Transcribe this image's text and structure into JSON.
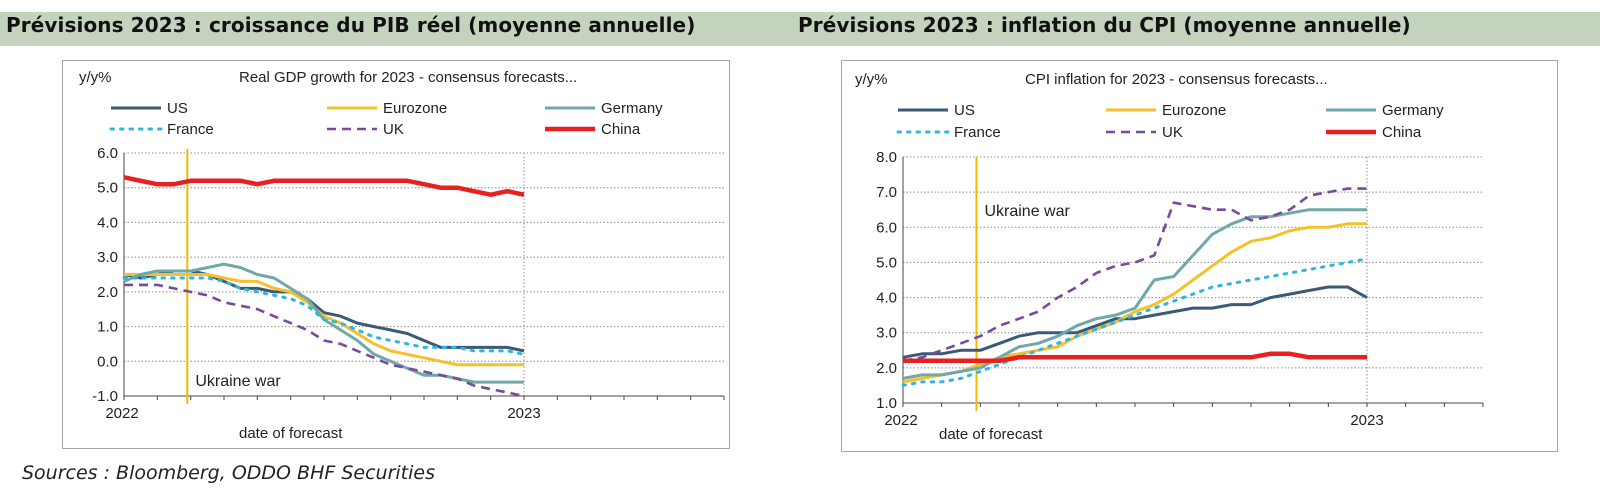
{
  "header": {
    "left_title": "Prévisions 2023 : croissance du PIB réel (moyenne annuelle)",
    "right_title": "Prévisions 2023 : inflation du CPI (moyenne annuelle)"
  },
  "footer": {
    "source": "Sources : Bloomberg, ODDO BHF Securities"
  },
  "chart_data": [
    {
      "type": "line",
      "title": "Real GDP growth for 2023  - consensus forecasts...",
      "ylabel": "y/y%",
      "xlabel": "date of forecast",
      "x_start_label": "2022",
      "x_end_label": "2023",
      "x_unit": "months since Jan 2022",
      "xlim": [
        0,
        18
      ],
      "ylim": [
        -1.0,
        6.0
      ],
      "yticks": [
        "-1.0",
        "0.0",
        "1.0",
        "2.0",
        "3.0",
        "4.0",
        "5.0",
        "6.0"
      ],
      "grid": true,
      "legend_position": "top",
      "annotation": {
        "text": "Ukraine war",
        "x": 1.9,
        "color": "#f5b800"
      },
      "series": [
        {
          "name": "US",
          "color": "#3a5a78",
          "style": "solid",
          "x": [
            0,
            0.5,
            1,
            1.5,
            2,
            2.5,
            3,
            3.5,
            4,
            4.5,
            5,
            5.5,
            6,
            6.5,
            7,
            7.5,
            8,
            8.5,
            9,
            9.5,
            10,
            10.5,
            11,
            11.5,
            12
          ],
          "y": [
            2.5,
            2.4,
            2.5,
            2.6,
            2.6,
            2.5,
            2.3,
            2.1,
            2.1,
            2.0,
            2.0,
            1.8,
            1.4,
            1.3,
            1.1,
            1.0,
            0.9,
            0.8,
            0.6,
            0.4,
            0.4,
            0.4,
            0.4,
            0.4,
            0.3
          ]
        },
        {
          "name": "Eurozone",
          "color": "#f5c028",
          "style": "solid",
          "x": [
            0,
            0.5,
            1,
            1.5,
            2,
            2.5,
            3,
            3.5,
            4,
            4.5,
            5,
            5.5,
            6,
            6.5,
            7,
            7.5,
            8,
            8.5,
            9,
            9.5,
            10,
            10.5,
            11,
            11.5,
            12
          ],
          "y": [
            2.5,
            2.5,
            2.5,
            2.5,
            2.5,
            2.5,
            2.4,
            2.3,
            2.3,
            2.1,
            2.0,
            1.7,
            1.3,
            1.1,
            0.8,
            0.5,
            0.3,
            0.2,
            0.1,
            0.0,
            -0.1,
            -0.1,
            -0.1,
            -0.1,
            -0.1
          ]
        },
        {
          "name": "Germany",
          "color": "#6ea8aa",
          "style": "solid",
          "x": [
            0,
            0.5,
            1,
            1.5,
            2,
            2.5,
            3,
            3.5,
            4,
            4.5,
            5,
            5.5,
            6,
            6.5,
            7,
            7.5,
            8,
            8.5,
            9,
            9.5,
            10,
            10.5,
            11,
            11.5,
            12
          ],
          "y": [
            2.3,
            2.5,
            2.6,
            2.6,
            2.6,
            2.7,
            2.8,
            2.7,
            2.5,
            2.4,
            2.1,
            1.8,
            1.2,
            0.9,
            0.6,
            0.2,
            0.0,
            -0.2,
            -0.4,
            -0.4,
            -0.5,
            -0.6,
            -0.6,
            -0.6,
            -0.6
          ]
        },
        {
          "name": "France",
          "color": "#2fb6de",
          "style": "dotted",
          "x": [
            0,
            0.5,
            1,
            1.5,
            2,
            2.5,
            3,
            3.5,
            4,
            4.5,
            5,
            5.5,
            6,
            6.5,
            7,
            7.5,
            8,
            8.5,
            9,
            9.5,
            10,
            10.5,
            11,
            11.5,
            12
          ],
          "y": [
            2.4,
            2.4,
            2.4,
            2.4,
            2.4,
            2.4,
            2.3,
            2.1,
            2.0,
            1.9,
            1.8,
            1.6,
            1.2,
            1.1,
            0.9,
            0.7,
            0.6,
            0.5,
            0.4,
            0.4,
            0.4,
            0.3,
            0.3,
            0.3,
            0.2
          ]
        },
        {
          "name": "UK",
          "color": "#7a4a9a",
          "style": "dashed",
          "x": [
            0,
            0.5,
            1,
            1.5,
            2,
            2.5,
            3,
            3.5,
            4,
            4.5,
            5,
            5.5,
            6,
            6.5,
            7,
            7.5,
            8,
            8.5,
            9,
            9.5,
            10,
            10.5,
            11,
            11.5,
            12
          ],
          "y": [
            2.2,
            2.2,
            2.2,
            2.1,
            2.0,
            1.9,
            1.7,
            1.6,
            1.5,
            1.3,
            1.1,
            0.9,
            0.6,
            0.5,
            0.3,
            0.1,
            -0.1,
            -0.2,
            -0.3,
            -0.4,
            -0.5,
            -0.7,
            -0.8,
            -0.9,
            -1.0
          ]
        },
        {
          "name": "China",
          "color": "#e82020",
          "style": "solid-thick",
          "x": [
            0,
            0.5,
            1,
            1.5,
            2,
            2.5,
            3,
            3.5,
            4,
            4.5,
            5,
            5.5,
            6,
            6.5,
            7,
            7.5,
            8,
            8.5,
            9,
            9.5,
            10,
            10.5,
            11,
            11.5,
            12
          ],
          "y": [
            5.3,
            5.2,
            5.1,
            5.1,
            5.2,
            5.2,
            5.2,
            5.2,
            5.1,
            5.2,
            5.2,
            5.2,
            5.2,
            5.2,
            5.2,
            5.2,
            5.2,
            5.2,
            5.1,
            5.0,
            5.0,
            4.9,
            4.8,
            4.9,
            4.8
          ]
        }
      ]
    },
    {
      "type": "line",
      "title": "CPI inflation for 2023  - consensus forecasts...",
      "ylabel": "y/y%",
      "xlabel": "date of forecast",
      "x_start_label": "2022",
      "x_end_label": "2023",
      "x_unit": "months since Jan 2022",
      "xlim": [
        0,
        15
      ],
      "ylim": [
        1.0,
        8.0
      ],
      "yticks": [
        "1.0",
        "2.0",
        "3.0",
        "4.0",
        "5.0",
        "6.0",
        "7.0",
        "8.0"
      ],
      "grid": true,
      "legend_position": "top",
      "annotation": {
        "text": "Ukraine war",
        "x": 1.9,
        "color": "#f5b800"
      },
      "series": [
        {
          "name": "US",
          "color": "#3a5a78",
          "style": "solid",
          "x": [
            0,
            0.5,
            1,
            1.5,
            2,
            2.5,
            3,
            3.5,
            4,
            4.5,
            5,
            5.5,
            6,
            6.5,
            7,
            7.5,
            8,
            8.5,
            9,
            9.5,
            10,
            10.5,
            11,
            11.5,
            12
          ],
          "y": [
            2.3,
            2.4,
            2.4,
            2.5,
            2.5,
            2.7,
            2.9,
            3.0,
            3.0,
            3.0,
            3.2,
            3.4,
            3.4,
            3.5,
            3.6,
            3.7,
            3.7,
            3.8,
            3.8,
            4.0,
            4.1,
            4.2,
            4.3,
            4.3,
            4.0
          ]
        },
        {
          "name": "Eurozone",
          "color": "#f5c028",
          "style": "solid",
          "x": [
            0,
            0.5,
            1,
            1.5,
            2,
            2.5,
            3,
            3.5,
            4,
            4.5,
            5,
            5.5,
            6,
            6.5,
            7,
            7.5,
            8,
            8.5,
            9,
            9.5,
            10,
            10.5,
            11,
            11.5,
            12
          ],
          "y": [
            1.6,
            1.7,
            1.8,
            1.9,
            2.1,
            2.3,
            2.4,
            2.5,
            2.6,
            2.9,
            3.1,
            3.3,
            3.6,
            3.8,
            4.1,
            4.5,
            4.9,
            5.3,
            5.6,
            5.7,
            5.9,
            6.0,
            6.0,
            6.1,
            6.1
          ]
        },
        {
          "name": "Germany",
          "color": "#6ea8aa",
          "style": "solid",
          "x": [
            0,
            0.5,
            1,
            1.5,
            2,
            2.5,
            3,
            3.5,
            4,
            4.5,
            5,
            5.5,
            6,
            6.5,
            7,
            7.5,
            8,
            8.5,
            9,
            9.5,
            10,
            10.5,
            11,
            11.5,
            12
          ],
          "y": [
            1.7,
            1.8,
            1.8,
            1.9,
            2.0,
            2.3,
            2.6,
            2.7,
            2.9,
            3.2,
            3.4,
            3.5,
            3.7,
            4.5,
            4.6,
            5.2,
            5.8,
            6.1,
            6.3,
            6.3,
            6.4,
            6.5,
            6.5,
            6.5,
            6.5
          ]
        },
        {
          "name": "France",
          "color": "#2fb6de",
          "style": "dotted",
          "x": [
            0,
            0.5,
            1,
            1.5,
            2,
            2.5,
            3,
            3.5,
            4,
            4.5,
            5,
            5.5,
            6,
            6.5,
            7,
            7.5,
            8,
            8.5,
            9,
            9.5,
            10,
            10.5,
            11,
            11.5,
            12
          ],
          "y": [
            1.5,
            1.6,
            1.6,
            1.7,
            1.9,
            2.1,
            2.3,
            2.5,
            2.7,
            2.9,
            3.1,
            3.3,
            3.5,
            3.7,
            3.9,
            4.1,
            4.3,
            4.4,
            4.5,
            4.6,
            4.7,
            4.8,
            4.9,
            5.0,
            5.1
          ]
        },
        {
          "name": "UK",
          "color": "#7a4a9a",
          "style": "dashed",
          "x": [
            0,
            0.5,
            1,
            1.5,
            2,
            2.5,
            3,
            3.5,
            4,
            4.5,
            5,
            5.5,
            6,
            6.5,
            7,
            7.5,
            8,
            8.5,
            9,
            9.5,
            10,
            10.5,
            11,
            11.5,
            12
          ],
          "y": [
            2.2,
            2.3,
            2.5,
            2.7,
            2.9,
            3.2,
            3.4,
            3.6,
            4.0,
            4.3,
            4.7,
            4.9,
            5.0,
            5.2,
            6.7,
            6.6,
            6.5,
            6.5,
            6.2,
            6.3,
            6.5,
            6.9,
            7.0,
            7.1,
            7.1
          ]
        },
        {
          "name": "China",
          "color": "#e82020",
          "style": "solid-thick",
          "x": [
            0,
            0.5,
            1,
            1.5,
            2,
            2.5,
            3,
            3.5,
            4,
            4.5,
            5,
            5.5,
            6,
            6.5,
            7,
            7.5,
            8,
            8.5,
            9,
            9.5,
            10,
            10.5,
            11,
            11.5,
            12
          ],
          "y": [
            2.2,
            2.2,
            2.2,
            2.2,
            2.2,
            2.2,
            2.3,
            2.3,
            2.3,
            2.3,
            2.3,
            2.3,
            2.3,
            2.3,
            2.3,
            2.3,
            2.3,
            2.3,
            2.3,
            2.4,
            2.4,
            2.3,
            2.3,
            2.3,
            2.3
          ]
        }
      ]
    }
  ]
}
